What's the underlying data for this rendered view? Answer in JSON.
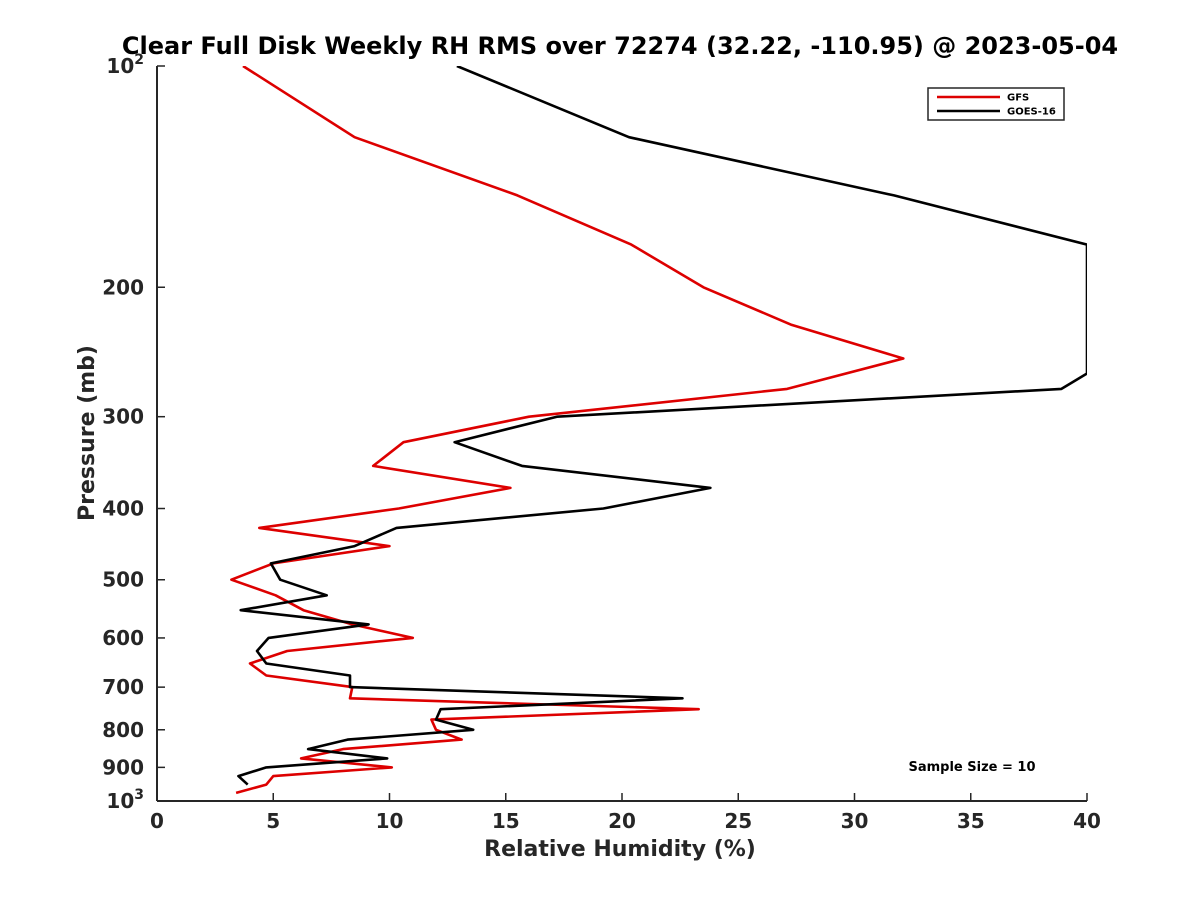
{
  "chart_data": {
    "type": "line",
    "title": "Clear Full Disk Weekly RH RMS over 72274 (32.22, -110.95) @ 2023-05-04",
    "xlabel": "Relative Humidity (%)",
    "ylabel": "Pressure (mb)",
    "xlim": [
      0,
      40
    ],
    "ylim": [
      100,
      1000
    ],
    "y_scale": "log",
    "y_reversed": true,
    "grid": false,
    "legend_position": "top-right",
    "x_ticks": [
      "0",
      "5",
      "10",
      "15",
      "20",
      "25",
      "30",
      "35",
      "40"
    ],
    "y_ticks": [
      {
        "value": 100,
        "base": "10",
        "exp": "2"
      },
      {
        "value": 200,
        "label": "200"
      },
      {
        "value": 300,
        "label": "300"
      },
      {
        "value": 400,
        "label": "400"
      },
      {
        "value": 500,
        "label": "500"
      },
      {
        "value": 600,
        "label": "600"
      },
      {
        "value": 700,
        "label": "700"
      },
      {
        "value": 800,
        "label": "800"
      },
      {
        "value": 900,
        "label": "900"
      },
      {
        "value": 1000,
        "base": "10",
        "exp": "3"
      }
    ],
    "annotation": "Sample Size = 10",
    "series": [
      {
        "name": "GFS",
        "color": "#dd0000",
        "points": [
          [
            3.7,
            100
          ],
          [
            8.5,
            125
          ],
          [
            15.5,
            150
          ],
          [
            20.4,
            175
          ],
          [
            23.5,
            200
          ],
          [
            27.3,
            225
          ],
          [
            32.1,
            250
          ],
          [
            27.1,
            275
          ],
          [
            16.0,
            300
          ],
          [
            10.6,
            325
          ],
          [
            9.3,
            350
          ],
          [
            15.2,
            375
          ],
          [
            10.4,
            400
          ],
          [
            4.4,
            425
          ],
          [
            10.0,
            450
          ],
          [
            5.0,
            475
          ],
          [
            3.2,
            500
          ],
          [
            5.1,
            525
          ],
          [
            6.3,
            550
          ],
          [
            8.4,
            575
          ],
          [
            11.0,
            600
          ],
          [
            5.6,
            625
          ],
          [
            4.0,
            650
          ],
          [
            4.7,
            675
          ],
          [
            8.4,
            700
          ],
          [
            8.3,
            725
          ],
          [
            23.3,
            750
          ],
          [
            11.8,
            775
          ],
          [
            12.0,
            800
          ],
          [
            13.1,
            825
          ],
          [
            8.0,
            850
          ],
          [
            6.2,
            875
          ],
          [
            10.1,
            900
          ],
          [
            5.0,
            925
          ],
          [
            4.7,
            950
          ],
          [
            3.4,
            975
          ]
        ]
      },
      {
        "name": "GOES-16",
        "color": "#000000",
        "points": [
          [
            12.9,
            100
          ],
          [
            20.3,
            125
          ],
          [
            31.7,
            150
          ],
          [
            40.0,
            175
          ],
          [
            40.0,
            200
          ],
          [
            40.0,
            225
          ],
          [
            40.0,
            250
          ],
          [
            40.0,
            262
          ],
          [
            38.9,
            275
          ],
          [
            17.2,
            300
          ],
          [
            12.8,
            325
          ],
          [
            15.7,
            350
          ],
          [
            23.8,
            375
          ],
          [
            19.2,
            400
          ],
          [
            10.3,
            425
          ],
          [
            8.5,
            450
          ],
          [
            4.9,
            475
          ],
          [
            5.3,
            500
          ],
          [
            7.3,
            525
          ],
          [
            3.6,
            550
          ],
          [
            9.1,
            575
          ],
          [
            4.8,
            600
          ],
          [
            4.3,
            625
          ],
          [
            4.7,
            650
          ],
          [
            8.3,
            675
          ],
          [
            8.3,
            700
          ],
          [
            22.6,
            725
          ],
          [
            12.2,
            750
          ],
          [
            12.0,
            775
          ],
          [
            13.6,
            800
          ],
          [
            8.2,
            825
          ],
          [
            6.5,
            850
          ],
          [
            9.9,
            875
          ],
          [
            4.7,
            900
          ],
          [
            3.5,
            925
          ],
          [
            3.9,
            950
          ]
        ]
      }
    ]
  }
}
